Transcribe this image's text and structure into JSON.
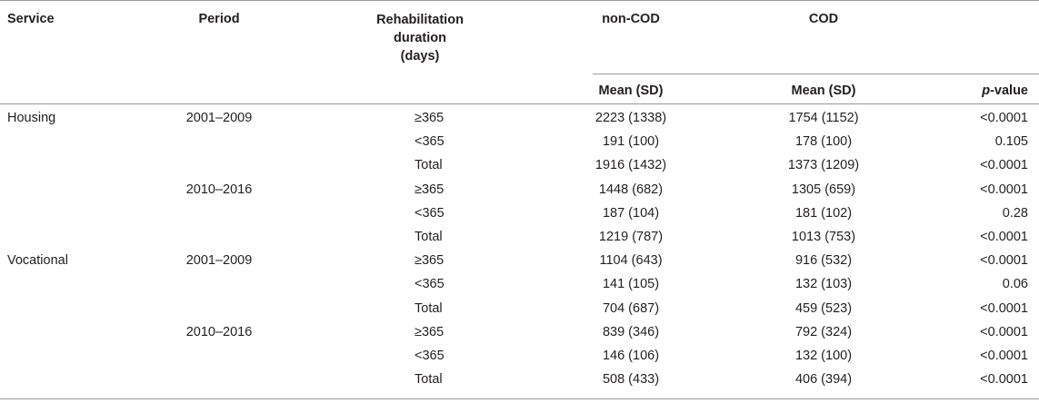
{
  "header": {
    "service": "Service",
    "period": "Period",
    "rehab_lines": [
      "Rehabilitation",
      "duration",
      "(days)"
    ],
    "non_cod": "non-COD",
    "cod": "COD",
    "mean_sd_noncod": "Mean (SD)",
    "mean_sd_cod": "Mean (SD)",
    "pvalue_italic": "p",
    "pvalue_rest": "-value"
  },
  "rows": [
    {
      "service": "Housing",
      "period": "2001–2009",
      "duration": "≥365",
      "noncod": "2223 (1338)",
      "cod": "1754 (1152)",
      "p": "<0.0001"
    },
    {
      "service": "",
      "period": "",
      "duration": "<365",
      "noncod": "191 (100)",
      "cod": "178 (100)",
      "p": "0.105"
    },
    {
      "service": "",
      "period": "",
      "duration": "Total",
      "noncod": "1916 (1432)",
      "cod": "1373 (1209)",
      "p": "<0.0001"
    },
    {
      "service": "",
      "period": "2010–2016",
      "duration": "≥365",
      "noncod": "1448 (682)",
      "cod": "1305 (659)",
      "p": "<0.0001"
    },
    {
      "service": "",
      "period": "",
      "duration": "<365",
      "noncod": "187 (104)",
      "cod": "181 (102)",
      "p": "0.28"
    },
    {
      "service": "",
      "period": "",
      "duration": "Total",
      "noncod": "1219 (787)",
      "cod": "1013 (753)",
      "p": "<0.0001"
    },
    {
      "service": "Vocational",
      "period": "2001–2009",
      "duration": "≥365",
      "noncod": "1104 (643)",
      "cod": "916 (532)",
      "p": "<0.0001"
    },
    {
      "service": "",
      "period": "",
      "duration": "<365",
      "noncod": "141 (105)",
      "cod": "132 (103)",
      "p": "0.06"
    },
    {
      "service": "",
      "period": "",
      "duration": "Total",
      "noncod": "704 (687)",
      "cod": "459 (523)",
      "p": "<0.0001"
    },
    {
      "service": "",
      "period": "2010–2016",
      "duration": "≥365",
      "noncod": "839 (346)",
      "cod": "792 (324)",
      "p": "<0.0001"
    },
    {
      "service": "",
      "period": "",
      "duration": "<365",
      "noncod": "146 (106)",
      "cod": "132 (100)",
      "p": "<0.0001"
    },
    {
      "service": "",
      "period": "",
      "duration": "Total",
      "noncod": "508 (433)",
      "cod": "406 (394)",
      "p": "<0.0001"
    }
  ]
}
